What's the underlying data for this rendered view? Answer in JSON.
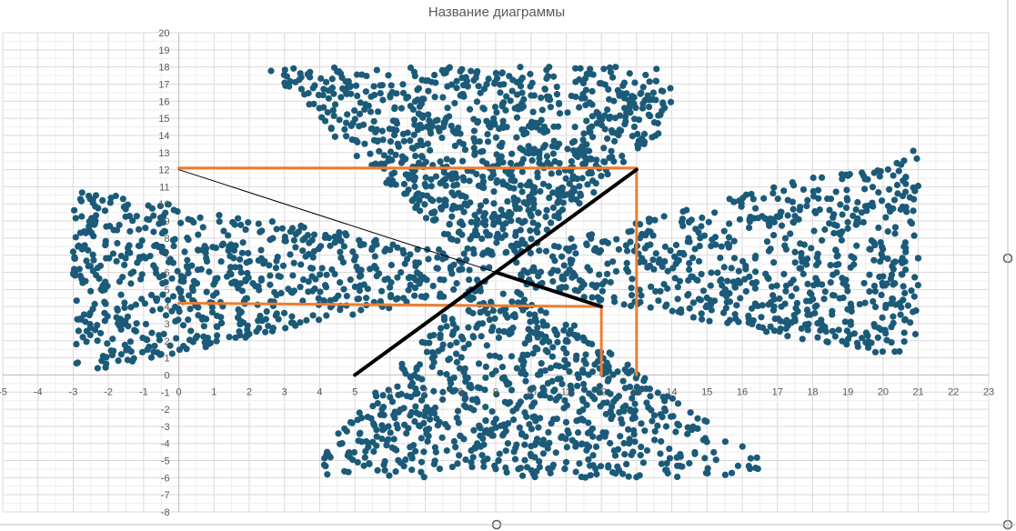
{
  "chart_data": {
    "type": "scatter",
    "title": "Название диаграммы",
    "xlabel": "",
    "ylabel": "",
    "xlim": [
      -5,
      23
    ],
    "ylim": [
      -8,
      20
    ],
    "x_ticks": [
      -5,
      -4,
      -3,
      -2,
      -1,
      0,
      1,
      2,
      3,
      4,
      5,
      6,
      7,
      8,
      9,
      10,
      11,
      12,
      13,
      14,
      15,
      16,
      17,
      18,
      19,
      20,
      21,
      22,
      23
    ],
    "y_ticks": [
      -8,
      -7,
      -6,
      -5,
      -4,
      -3,
      -2,
      -1,
      0,
      1,
      2,
      3,
      4,
      5,
      6,
      7,
      8,
      9,
      10,
      11,
      12,
      13,
      14,
      15,
      16,
      17,
      18,
      19,
      20
    ],
    "grid": true,
    "legend": "none",
    "point_color": "#1b5a78",
    "clusters": [
      {
        "name": "top",
        "cx": 9,
        "cy": 13,
        "x_range": [
          1,
          14
        ],
        "y_range": [
          7,
          18
        ],
        "shape": "inverted-fan",
        "count": 900
      },
      {
        "name": "bottom",
        "cx": 9,
        "cy": 1,
        "x_range": [
          4,
          16.5
        ],
        "y_range": [
          -6,
          5
        ],
        "shape": "fan",
        "count": 800
      },
      {
        "name": "left",
        "cx": 2,
        "cy": 6,
        "x_range": [
          -3,
          9
        ],
        "y_range": [
          -2,
          11
        ],
        "shape": "ellipse-taper",
        "count": 700
      },
      {
        "name": "right",
        "cx": 16,
        "cy": 7,
        "x_range": [
          9.5,
          21
        ],
        "y_range": [
          1,
          13.5
        ],
        "shape": "ellipse-taper",
        "count": 700
      }
    ],
    "overlay_lines": [
      {
        "name": "orange-upper-horizontal",
        "color": "#ed7d31",
        "width": 3,
        "points": [
          [
            0,
            12.1
          ],
          [
            13,
            12.1
          ]
        ]
      },
      {
        "name": "orange-upper-vertical",
        "color": "#ed7d31",
        "width": 3,
        "points": [
          [
            13,
            12.1
          ],
          [
            13,
            0
          ]
        ]
      },
      {
        "name": "orange-lower-horizontal",
        "color": "#ed7d31",
        "width": 3,
        "points": [
          [
            0,
            4.2
          ],
          [
            12,
            4.0
          ]
        ]
      },
      {
        "name": "orange-lower-vertical",
        "color": "#ed7d31",
        "width": 3,
        "points": [
          [
            12,
            4.0
          ],
          [
            12,
            0
          ]
        ]
      },
      {
        "name": "black-diagonal",
        "color": "#000000",
        "width": 4,
        "points": [
          [
            5,
            0
          ],
          [
            13,
            12
          ]
        ]
      },
      {
        "name": "black-thin-line",
        "color": "#000000",
        "width": 1,
        "points": [
          [
            0,
            12
          ],
          [
            9,
            6
          ]
        ]
      },
      {
        "name": "black-thick-segment",
        "color": "#000000",
        "width": 4,
        "points": [
          [
            9,
            6
          ],
          [
            12,
            4
          ]
        ]
      }
    ]
  }
}
